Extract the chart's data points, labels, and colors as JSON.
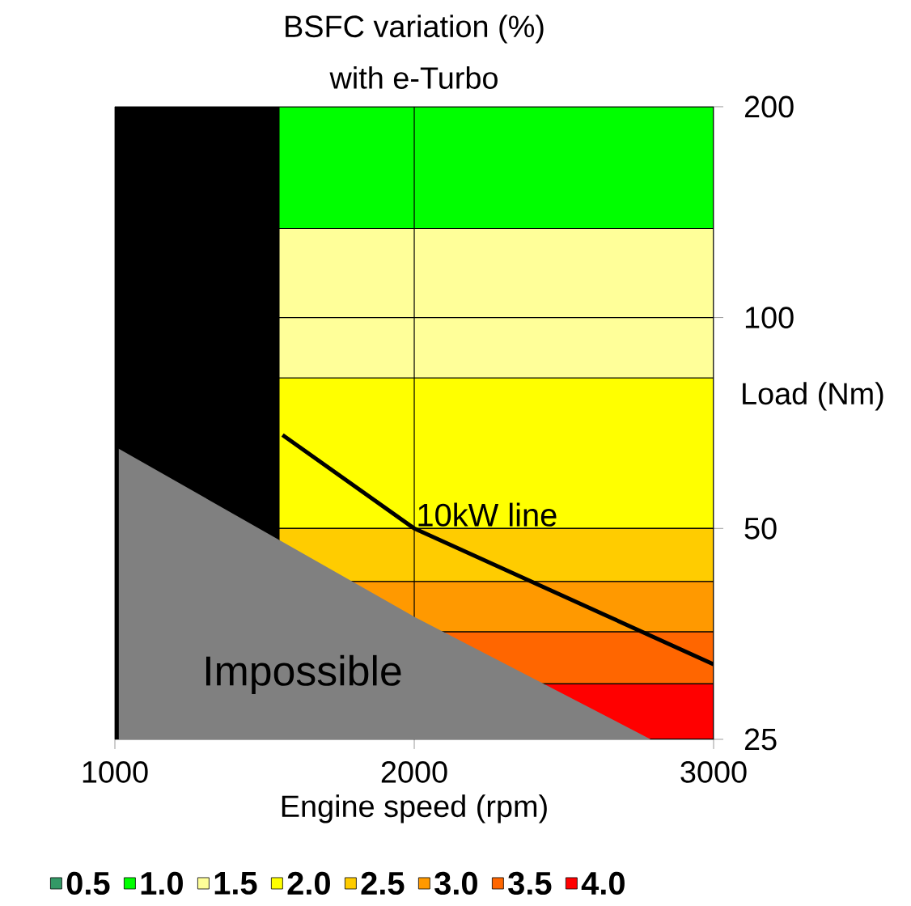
{
  "chart_data": {
    "type": "area",
    "title": "BSFC variation (%)",
    "subtitle": "with e-Turbo",
    "xlabel": "Engine speed (rpm)",
    "ylabel": "Load (Nm)",
    "xlim": [
      1000,
      3000
    ],
    "xticks": [
      1000,
      2000,
      3000
    ],
    "ylim": [
      25,
      200
    ],
    "yticks": [
      200,
      100,
      50,
      25
    ],
    "log": "y",
    "grid": true,
    "legend": "bottom",
    "series": [
      {
        "name": "0.5",
        "color": "#339966"
      },
      {
        "color": "#000000",
        "x": [
          1000,
          1550
        ],
        "values": [
          200,
          200
        ]
      },
      {
        "color": "#808080",
        "x": [
          1013,
          2000,
          2790
        ],
        "values": [
          65,
          37.4,
          25
        ]
      },
      {
        "name": "10kW line",
        "color": "#000000",
        "type": "line",
        "x": [
          1560,
          2000,
          3000
        ],
        "values": [
          68,
          50,
          32
        ]
      }
    ],
    "bands": [
      {
        "axis": "y",
        "from": 134,
        "to": 200,
        "label": "1.0",
        "color": "#00ff00"
      },
      {
        "axis": "y",
        "from": 82,
        "to": 134,
        "label": "1.5",
        "color": "#ffff99"
      },
      {
        "axis": "y",
        "from": 50,
        "to": 82,
        "label": "2.0",
        "color": "#ffff00"
      },
      {
        "axis": "y",
        "from": 42,
        "to": 50,
        "label": "2.5",
        "color": "#ffcc00"
      },
      {
        "axis": "y",
        "from": 35.6,
        "to": 42,
        "label": "3.0",
        "color": "#ff9900"
      },
      {
        "axis": "y",
        "from": 30,
        "to": 35.6,
        "label": "3.5",
        "color": "#ff6600"
      },
      {
        "axis": "y",
        "from": 25,
        "to": 30,
        "label": "4.0",
        "color": "#ff0000"
      }
    ],
    "annotations": [
      "Impossible"
    ]
  }
}
